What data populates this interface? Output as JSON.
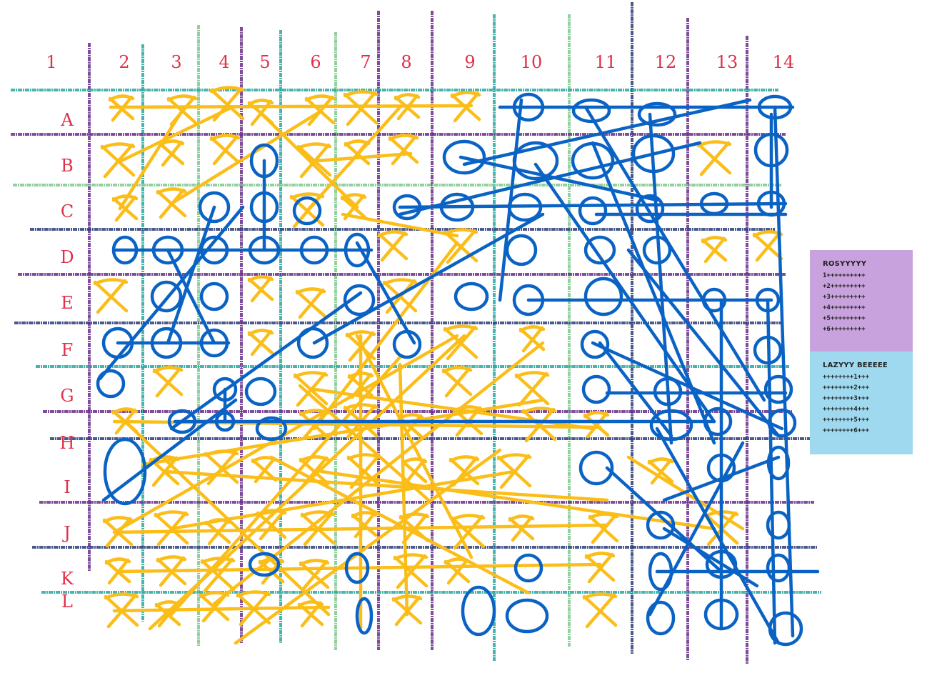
{
  "board": {
    "columns": [
      "1",
      "2",
      "3",
      "4",
      "5",
      "6",
      "7",
      "8",
      "9",
      "10",
      "11",
      "12",
      "13",
      "14"
    ],
    "rows": [
      "A",
      "B",
      "C",
      "D",
      "E",
      "F",
      "G",
      "H",
      "I",
      "J",
      "K",
      "L"
    ]
  },
  "players": [
    {
      "id": "rosy",
      "title": "ROSYYYYY",
      "panel_color": "#c8a2dd",
      "lines": [
        "1++++++++++",
        "+2+++++++++",
        "+3+++++++++",
        "+4+++++++++",
        "+5+++++++++",
        "+6+++++++++"
      ]
    },
    {
      "id": "lazy",
      "title": "LAZYYY BEEEEE",
      "panel_color": "#9ed9f0",
      "lines": [
        "++++++++1+++",
        "++++++++2+++",
        "++++++++3+++",
        "++++++++4+++",
        "++++++++5+++",
        "++++++++6+++"
      ]
    }
  ],
  "colors": {
    "label_red": "#e0304a",
    "x_yellow": "#fbbd18",
    "o_blue": "#0a63c4",
    "grid_teal": "#2aa8a0",
    "grid_purple": "#6a2f8a",
    "grid_navy": "#2c3e7a",
    "grid_green": "#7fc88e"
  }
}
